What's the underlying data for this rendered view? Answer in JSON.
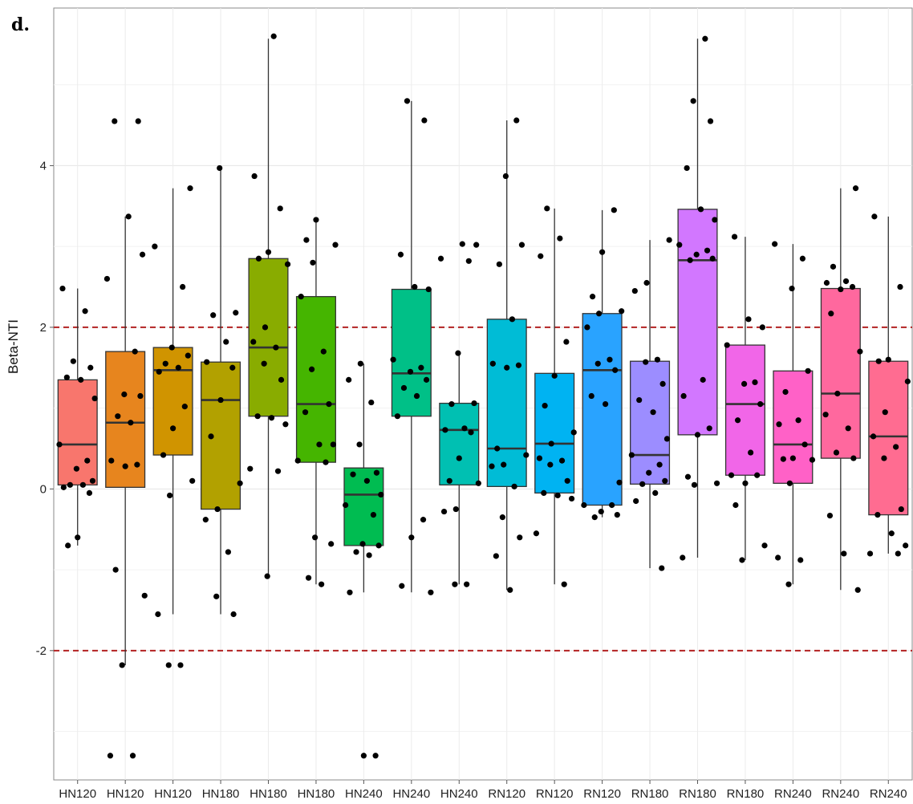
{
  "chart_data": {
    "type": "box",
    "panel_label": "d.",
    "ylabel": "Beta-NTI",
    "xlabel": "",
    "ylim": [
      -3.6,
      5.95
    ],
    "y_ticks": [
      -2,
      0,
      2,
      4
    ],
    "reference_lines": [
      2,
      -2
    ],
    "reference_line_color": "#b22222",
    "grid": true,
    "categories": [
      "HN120",
      "HN120",
      "HN120",
      "HN180",
      "HN180",
      "HN180",
      "HN240",
      "HN240",
      "HN240",
      "RN120",
      "RN120",
      "RN120",
      "RN180",
      "RN180",
      "RN180",
      "RN240",
      "RN240",
      "RN240"
    ],
    "colors": [
      "#F8766D",
      "#E7851E",
      "#D09400",
      "#B2A100",
      "#89AC00",
      "#45B500",
      "#00BC51",
      "#00C087",
      "#00C0B2",
      "#00BCD6",
      "#00B3F2",
      "#29A3FF",
      "#9C8DFF",
      "#D277FF",
      "#F166E8",
      "#FF61C7",
      "#FF689E",
      "#FF6C91"
    ],
    "boxes": [
      {
        "q1": 0.05,
        "median": 0.55,
        "q3": 1.35,
        "whisker_low": -0.7,
        "whisker_high": 2.48,
        "points": [
          2.48,
          2.2,
          1.58,
          1.5,
          1.38,
          1.35,
          1.12,
          0.55,
          0.35,
          0.25,
          0.1,
          0.05,
          0.05,
          0.02,
          -0.05,
          -0.6,
          -0.7
        ]
      },
      {
        "q1": 0.02,
        "median": 0.82,
        "q3": 1.7,
        "whisker_low": -2.18,
        "whisker_high": 3.37,
        "points": [
          4.55,
          4.55,
          3.37,
          2.9,
          2.6,
          1.7,
          1.17,
          1.15,
          0.9,
          0.82,
          0.35,
          0.3,
          0.28,
          -1.0,
          -1.32,
          -2.18,
          -3.3,
          -3.3
        ]
      },
      {
        "q1": 0.42,
        "median": 1.47,
        "q3": 1.75,
        "whisker_low": -1.55,
        "whisker_high": 3.72,
        "points": [
          3.72,
          3.0,
          2.5,
          1.75,
          1.65,
          1.55,
          1.5,
          1.45,
          1.02,
          0.75,
          0.42,
          0.1,
          -0.08,
          -1.55,
          -2.18,
          -2.18
        ]
      },
      {
        "q1": -0.25,
        "median": 1.1,
        "q3": 1.57,
        "whisker_low": -1.55,
        "whisker_high": 3.97,
        "points": [
          3.97,
          2.18,
          2.15,
          1.82,
          1.57,
          1.5,
          1.1,
          0.65,
          0.07,
          -0.25,
          -0.38,
          -0.78,
          -1.33,
          -1.55
        ]
      },
      {
        "q1": 0.9,
        "median": 1.75,
        "q3": 2.85,
        "whisker_low": -1.08,
        "whisker_high": 5.57,
        "points": [
          5.6,
          3.87,
          3.47,
          2.93,
          2.85,
          2.78,
          2.0,
          1.82,
          1.75,
          1.55,
          1.35,
          0.9,
          0.88,
          0.8,
          0.25,
          0.22,
          -1.08
        ]
      },
      {
        "q1": 0.33,
        "median": 1.05,
        "q3": 2.38,
        "whisker_low": -1.18,
        "whisker_high": 3.33,
        "points": [
          3.33,
          3.08,
          3.02,
          2.8,
          2.38,
          1.7,
          1.48,
          1.05,
          0.95,
          0.55,
          0.55,
          0.35,
          0.33,
          -0.6,
          -0.68,
          -1.1,
          -1.18
        ]
      },
      {
        "q1": -0.7,
        "median": -0.07,
        "q3": 0.26,
        "whisker_low": -1.28,
        "whisker_high": 1.55,
        "points": [
          1.55,
          1.35,
          1.07,
          0.55,
          0.2,
          0.18,
          0.1,
          -0.07,
          -0.2,
          -0.32,
          -0.68,
          -0.7,
          -0.78,
          -0.82,
          -1.28,
          -3.3,
          -3.3
        ]
      },
      {
        "q1": 0.9,
        "median": 1.43,
        "q3": 2.47,
        "whisker_low": -1.28,
        "whisker_high": 4.8,
        "points": [
          4.8,
          4.56,
          2.9,
          2.5,
          2.47,
          1.6,
          1.5,
          1.45,
          1.35,
          1.25,
          1.15,
          0.9,
          -0.38,
          -0.6,
          -1.2,
          -1.28
        ]
      },
      {
        "q1": 0.05,
        "median": 0.73,
        "q3": 1.06,
        "whisker_low": -1.18,
        "whisker_high": 1.68,
        "points": [
          3.03,
          3.02,
          2.85,
          2.82,
          1.68,
          1.06,
          1.05,
          0.75,
          0.73,
          0.7,
          0.38,
          0.1,
          0.07,
          -0.25,
          -0.28,
          -1.18,
          -1.18
        ]
      },
      {
        "q1": 0.03,
        "median": 0.5,
        "q3": 2.1,
        "whisker_low": -1.25,
        "whisker_high": 4.56,
        "points": [
          4.56,
          3.87,
          3.02,
          2.78,
          2.1,
          1.55,
          1.53,
          1.5,
          0.5,
          0.42,
          0.3,
          0.28,
          0.03,
          -0.35,
          -0.6,
          -0.83,
          -1.25
        ]
      },
      {
        "q1": -0.05,
        "median": 0.56,
        "q3": 1.43,
        "whisker_low": -1.18,
        "whisker_high": 3.47,
        "points": [
          3.47,
          3.1,
          2.88,
          1.82,
          1.4,
          1.03,
          0.7,
          0.56,
          0.38,
          0.35,
          0.3,
          0.1,
          -0.05,
          -0.08,
          -0.12,
          -0.55,
          -1.18
        ]
      },
      {
        "q1": -0.2,
        "median": 1.47,
        "q3": 2.17,
        "whisker_low": -0.35,
        "whisker_high": 3.45,
        "points": [
          3.45,
          2.93,
          2.38,
          2.2,
          2.17,
          2.0,
          1.6,
          1.55,
          1.47,
          1.15,
          1.05,
          0.08,
          -0.2,
          -0.2,
          -0.28,
          -0.32,
          -0.35
        ]
      },
      {
        "q1": 0.06,
        "median": 0.42,
        "q3": 1.58,
        "whisker_low": -0.98,
        "whisker_high": 3.08,
        "points": [
          3.08,
          2.55,
          2.45,
          1.6,
          1.57,
          1.3,
          1.1,
          0.95,
          0.62,
          0.42,
          0.3,
          0.2,
          0.1,
          0.06,
          -0.05,
          -0.15,
          -0.98
        ]
      },
      {
        "q1": 0.67,
        "median": 2.83,
        "q3": 3.46,
        "whisker_low": -0.85,
        "whisker_high": 5.57,
        "points": [
          5.57,
          4.8,
          4.55,
          3.97,
          3.46,
          3.33,
          3.02,
          2.95,
          2.9,
          2.85,
          2.83,
          1.35,
          1.15,
          0.75,
          0.67,
          0.15,
          0.07,
          0.05,
          -0.85
        ]
      },
      {
        "q1": 0.17,
        "median": 1.05,
        "q3": 1.78,
        "whisker_low": -0.88,
        "whisker_high": 3.12,
        "points": [
          3.12,
          2.1,
          2.0,
          1.78,
          1.32,
          1.3,
          1.05,
          0.85,
          0.45,
          0.17,
          0.17,
          0.07,
          -0.2,
          -0.7,
          -0.88
        ]
      },
      {
        "q1": 0.07,
        "median": 0.55,
        "q3": 1.46,
        "whisker_low": -1.18,
        "whisker_high": 3.03,
        "points": [
          3.03,
          2.85,
          2.48,
          1.46,
          1.2,
          0.85,
          0.8,
          0.55,
          0.38,
          0.37,
          0.36,
          0.07,
          -0.85,
          -0.88,
          -1.18
        ]
      },
      {
        "q1": 0.38,
        "median": 1.18,
        "q3": 2.48,
        "whisker_low": -1.25,
        "whisker_high": 3.72,
        "points": [
          3.72,
          2.75,
          2.57,
          2.55,
          2.5,
          2.47,
          2.17,
          1.7,
          1.18,
          0.92,
          0.75,
          0.45,
          0.38,
          -0.33,
          -0.8,
          -1.25
        ]
      },
      {
        "q1": -0.32,
        "median": 0.65,
        "q3": 1.58,
        "whisker_low": -0.8,
        "whisker_high": 3.37,
        "points": [
          3.37,
          2.5,
          1.6,
          1.58,
          1.33,
          0.95,
          0.65,
          0.52,
          0.38,
          -0.25,
          -0.32,
          -0.55,
          -0.7,
          -0.8,
          -0.8
        ]
      }
    ]
  }
}
